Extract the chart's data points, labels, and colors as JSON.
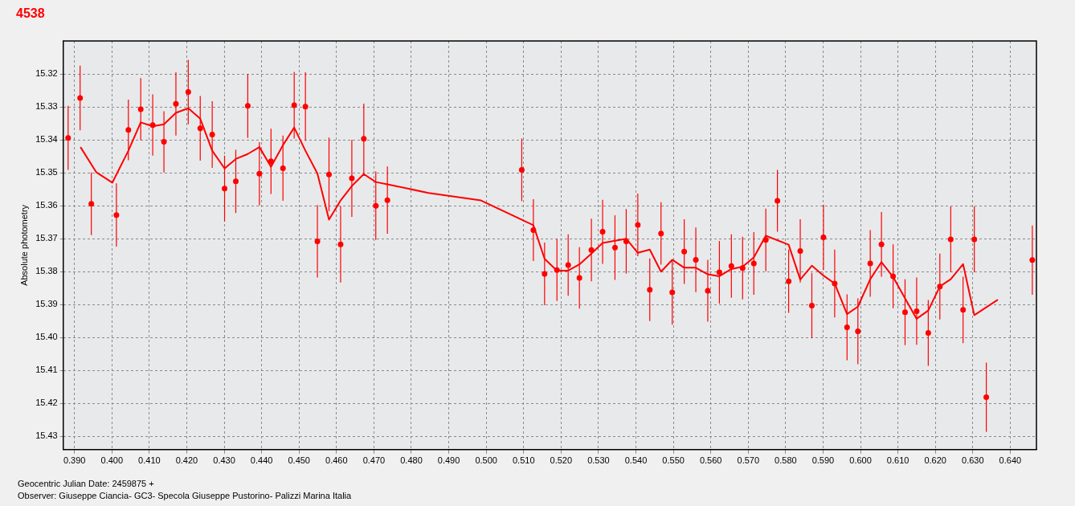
{
  "chart_data": {
    "type": "scatter",
    "title": "4538",
    "xlabel": "Geocentric Julian Date: 2459875 +",
    "ylabel": "Absolute photometry",
    "annotations": [
      "Observer: Giuseppe Ciancia- GC3- Specola Giuseppe Pustorino- Palizzi Marina Italia"
    ],
    "xlim": [
      0.387,
      0.647
    ],
    "ylim": [
      15.434,
      15.31
    ],
    "xticks": [
      {
        "value": 0.39,
        "label": "0.390"
      },
      {
        "value": 0.4,
        "label": "0.400"
      },
      {
        "value": 0.41,
        "label": "0.410"
      },
      {
        "value": 0.42,
        "label": "0.420"
      },
      {
        "value": 0.43,
        "label": "0.430"
      },
      {
        "value": 0.44,
        "label": "0.440"
      },
      {
        "value": 0.45,
        "label": "0.450"
      },
      {
        "value": 0.46,
        "label": "0.460"
      },
      {
        "value": 0.47,
        "label": "0.470"
      },
      {
        "value": 0.48,
        "label": "0.480"
      },
      {
        "value": 0.49,
        "label": "0.490"
      },
      {
        "value": 0.5,
        "label": "0.500"
      },
      {
        "value": 0.51,
        "label": "0.510"
      },
      {
        "value": 0.52,
        "label": "0.520"
      },
      {
        "value": 0.53,
        "label": "0.530"
      },
      {
        "value": 0.54,
        "label": "0.540"
      },
      {
        "value": 0.55,
        "label": "0.550"
      },
      {
        "value": 0.56,
        "label": "0.560"
      },
      {
        "value": 0.57,
        "label": "0.570"
      },
      {
        "value": 0.58,
        "label": "0.580"
      },
      {
        "value": 0.59,
        "label": "0.590"
      },
      {
        "value": 0.6,
        "label": "0.600"
      },
      {
        "value": 0.61,
        "label": "0.610"
      },
      {
        "value": 0.62,
        "label": "0.620"
      },
      {
        "value": 0.63,
        "label": "0.630"
      },
      {
        "value": 0.64,
        "label": "0.640"
      }
    ],
    "yticks": [
      15.32,
      15.33,
      15.34,
      15.35,
      15.36,
      15.37,
      15.38,
      15.39,
      {
        "value": 15.4,
        "label": "15.40"
      },
      15.41,
      15.42,
      15.43
    ],
    "grid": true,
    "series": [
      {
        "type": "scatter",
        "color": "#ff0000",
        "marker": "circle",
        "x": [
          0.3883,
          0.3915,
          0.3945,
          0.4012,
          0.4044,
          0.4077,
          0.4109,
          0.4139,
          0.4171,
          0.4204,
          0.4236,
          0.4268,
          0.4301,
          0.4331,
          0.4363,
          0.4394,
          0.4425,
          0.4457,
          0.4487,
          0.4517,
          0.4549,
          0.458,
          0.4611,
          0.4641,
          0.4673,
          0.4705,
          0.4736,
          0.5095,
          0.5126,
          0.5156,
          0.5189,
          0.5219,
          0.5249,
          0.5281,
          0.5311,
          0.5344,
          0.5374,
          0.5405,
          0.5437,
          0.5467,
          0.5497,
          0.5529,
          0.556,
          0.5592,
          0.5623,
          0.5655,
          0.5685,
          0.5715,
          0.5747,
          0.5778,
          0.5808,
          0.5839,
          0.587,
          0.5901,
          0.5931,
          0.5964,
          0.5993,
          0.6026,
          0.6056,
          0.6087,
          0.6119,
          0.615,
          0.6181,
          0.6212,
          0.6241,
          0.6274,
          0.6304,
          0.6336,
          0.6459
        ],
        "values": [
          15.3394,
          15.3273,
          15.3594,
          15.3628,
          15.337,
          15.3307,
          15.3355,
          15.3406,
          15.3291,
          15.3255,
          15.3365,
          15.3384,
          15.3548,
          15.3526,
          15.3297,
          15.3503,
          15.3465,
          15.3486,
          15.3295,
          15.3299,
          15.3708,
          15.3505,
          15.3717,
          15.3517,
          15.3397,
          15.36,
          15.3583,
          15.3491,
          15.3674,
          15.3807,
          15.3795,
          15.378,
          15.3819,
          15.3734,
          15.3679,
          15.3727,
          15.3708,
          15.3658,
          15.3855,
          15.3684,
          15.3863,
          15.3739,
          15.3764,
          15.3858,
          15.3802,
          15.3783,
          15.3789,
          15.3775,
          15.3704,
          15.3585,
          15.3829,
          15.3737,
          15.3903,
          15.3696,
          15.3836,
          15.3969,
          15.3981,
          15.3775,
          15.3717,
          15.3814,
          15.3923,
          15.392,
          15.3986,
          15.3845,
          15.3702,
          15.3916,
          15.3702,
          15.4181,
          15.3765
        ],
        "errors": [
          0.0097,
          0.0098,
          0.0095,
          0.0096,
          0.0092,
          0.0094,
          0.0093,
          0.0093,
          0.0096,
          0.0098,
          0.0098,
          0.0101,
          0.01,
          0.0096,
          0.0097,
          0.0096,
          0.0099,
          0.0099,
          0.0101,
          0.0104,
          0.011,
          0.0112,
          0.0116,
          0.0117,
          0.0107,
          0.0104,
          0.0102,
          0.0095,
          0.0094,
          0.0095,
          0.0094,
          0.0093,
          0.0093,
          0.0095,
          0.0097,
          0.0098,
          0.0098,
          0.0095,
          0.0095,
          0.0095,
          0.0098,
          0.0098,
          0.0098,
          0.0094,
          0.0095,
          0.0096,
          0.0095,
          0.0095,
          0.0095,
          0.0094,
          0.0096,
          0.0096,
          0.0099,
          0.0099,
          0.0103,
          0.01,
          0.01,
          0.0101,
          0.0098,
          0.0097,
          0.01,
          0.0102,
          0.01,
          0.01,
          0.01,
          0.0101,
          0.01,
          0.0105,
          0.0105
        ]
      },
      {
        "type": "line",
        "color": "#ff0000",
        "marker": "none",
        "x": [
          0.3916,
          0.3958,
          0.4001,
          0.4044,
          0.4077,
          0.4109,
          0.4139,
          0.4171,
          0.4204,
          0.4236,
          0.4268,
          0.4301,
          0.4331,
          0.4363,
          0.4394,
          0.4425,
          0.4457,
          0.4487,
          0.4517,
          0.4549,
          0.458,
          0.4611,
          0.4641,
          0.4673,
          0.4705,
          0.4736,
          0.4846,
          0.4986,
          0.5126,
          0.5156,
          0.5189,
          0.5219,
          0.5249,
          0.5281,
          0.5311,
          0.5344,
          0.5374,
          0.5405,
          0.5437,
          0.5467,
          0.5497,
          0.5529,
          0.556,
          0.5592,
          0.5623,
          0.5655,
          0.5685,
          0.5715,
          0.5747,
          0.5808,
          0.5839,
          0.587,
          0.5901,
          0.5931,
          0.5964,
          0.5993,
          0.6026,
          0.6056,
          0.6087,
          0.6119,
          0.615,
          0.6181,
          0.6212,
          0.6241,
          0.6274,
          0.6304,
          0.6367
        ],
        "values": [
          15.3422,
          15.3498,
          15.353,
          15.3433,
          15.3347,
          15.3359,
          15.3353,
          15.3318,
          15.3304,
          15.3336,
          15.3433,
          15.3487,
          15.3458,
          15.3443,
          15.3422,
          15.3482,
          15.3416,
          15.3363,
          15.3433,
          15.3502,
          15.3642,
          15.3584,
          15.354,
          15.3504,
          15.3528,
          15.3535,
          15.3561,
          15.3584,
          15.3659,
          15.3761,
          15.3797,
          15.3797,
          15.3778,
          15.3745,
          15.3713,
          15.3706,
          15.37,
          15.3743,
          15.3733,
          15.38,
          15.3764,
          15.3788,
          15.3788,
          15.3808,
          15.3814,
          15.3792,
          15.3785,
          15.3757,
          15.3691,
          15.3718,
          15.3824,
          15.3782,
          15.3812,
          15.3836,
          15.3929,
          15.3906,
          15.3823,
          15.3771,
          15.3816,
          15.3881,
          15.3943,
          15.3918,
          15.3845,
          15.3823,
          15.3777,
          15.3932,
          15.3885
        ]
      }
    ]
  }
}
